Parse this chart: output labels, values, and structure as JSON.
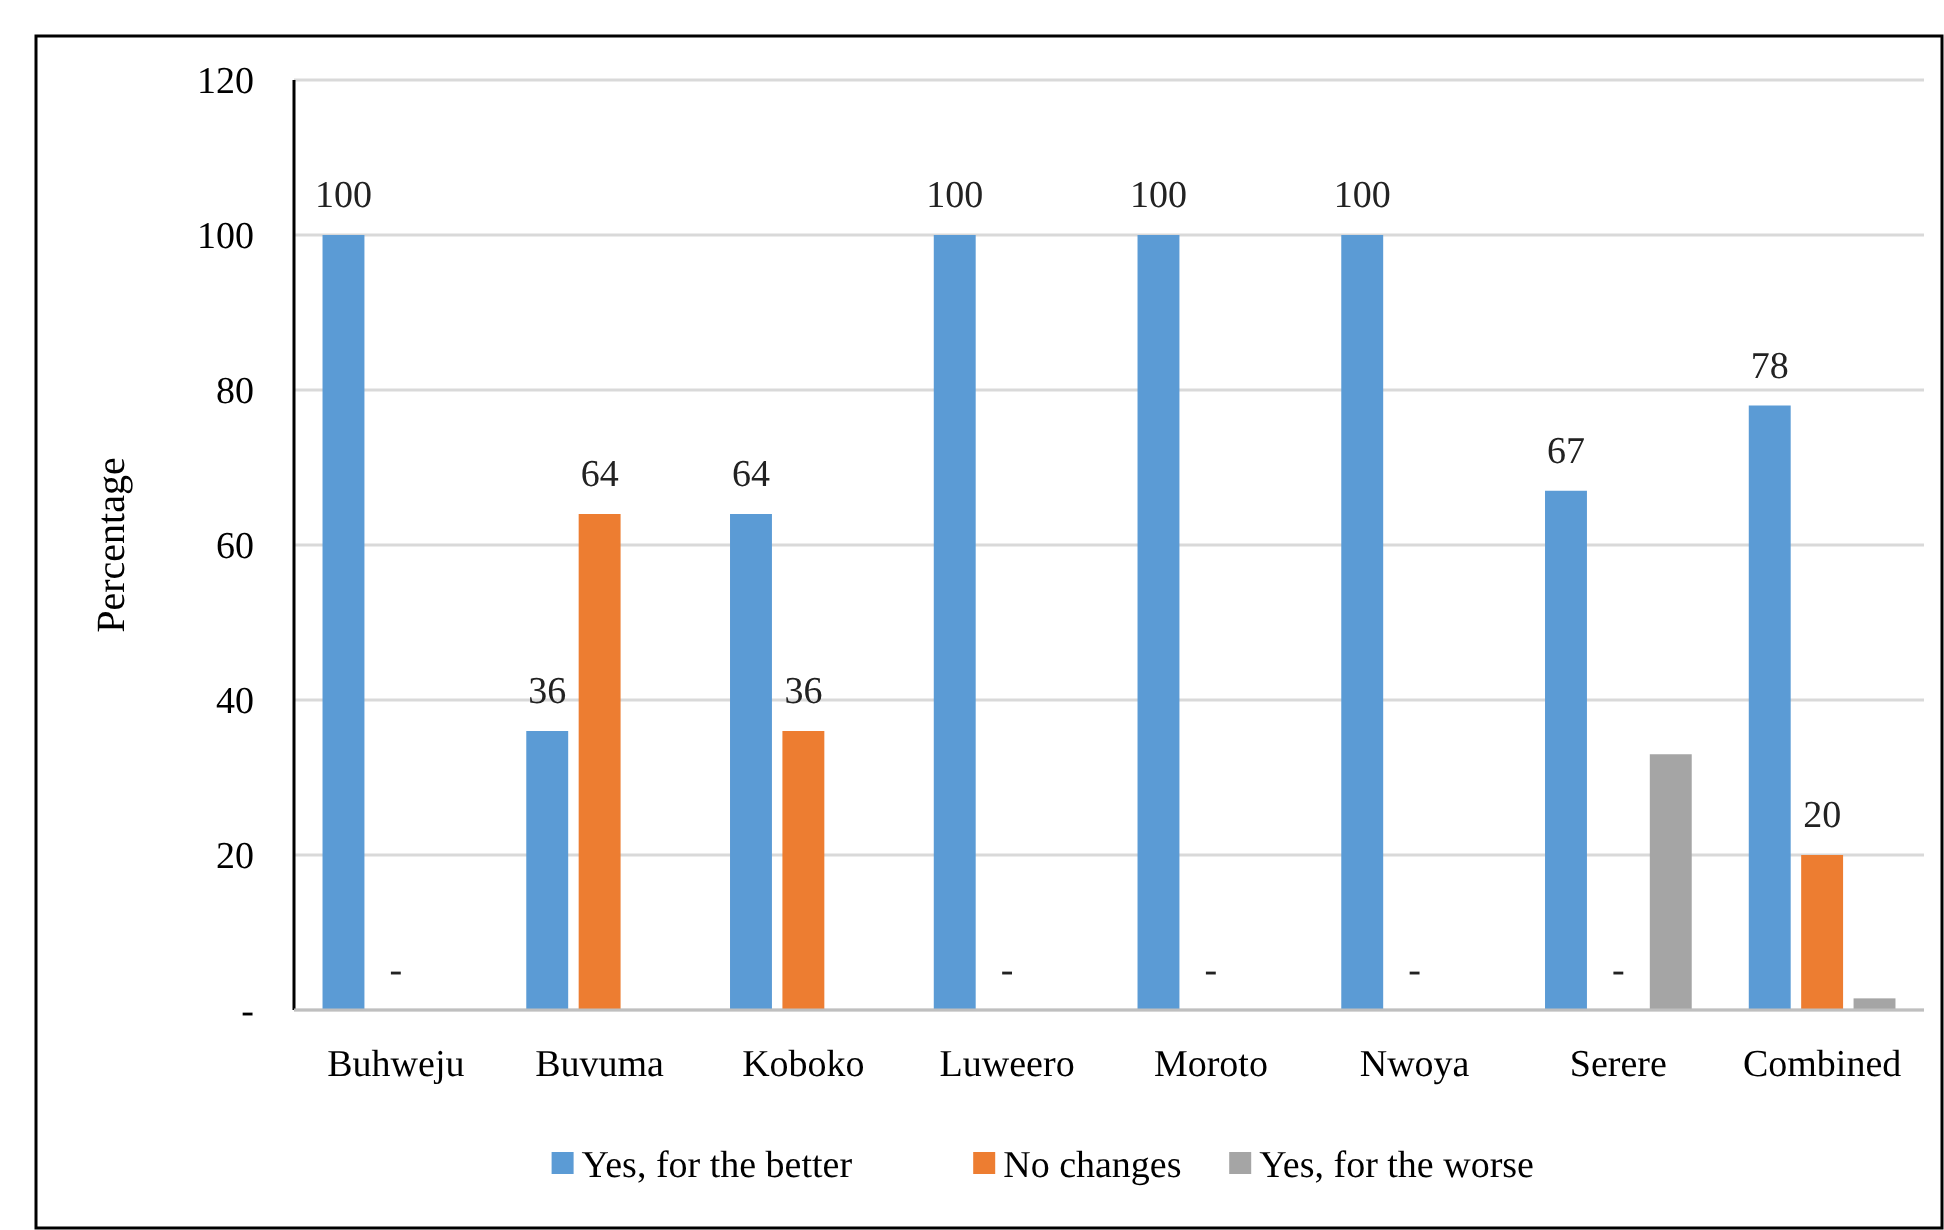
{
  "chart_data": {
    "type": "bar",
    "ylabel": "Percentage",
    "categories": [
      "Buhweju",
      "Buvuma",
      "Koboko",
      "Luweero",
      "Moroto",
      "Nwoya",
      "Serere",
      "Combined"
    ],
    "series": [
      {
        "name": "Yes, for the better",
        "color": "#5b9bd5",
        "values": [
          100,
          36,
          64,
          100,
          100,
          100,
          67,
          78
        ],
        "value_labels": [
          "100",
          "36",
          "64",
          "100",
          "100",
          "100",
          "67",
          "78"
        ]
      },
      {
        "name": "No changes",
        "color": "#ed7d31",
        "values": [
          0,
          64,
          36,
          0,
          0,
          0,
          0,
          20
        ],
        "value_labels": [
          "-",
          "64",
          "36",
          "-",
          "-",
          "-",
          "-",
          "20"
        ]
      },
      {
        "name": "Yes, for the worse",
        "color": "#a5a5a5",
        "values": [
          0,
          0,
          0,
          0,
          0,
          0,
          33,
          1.5
        ]
      }
    ],
    "ylim": [
      0,
      120
    ],
    "yticks": [
      {
        "value": 0,
        "label": "-"
      },
      20,
      40,
      60,
      80,
      100,
      120
    ],
    "grid": "y",
    "legend": "bottom"
  }
}
